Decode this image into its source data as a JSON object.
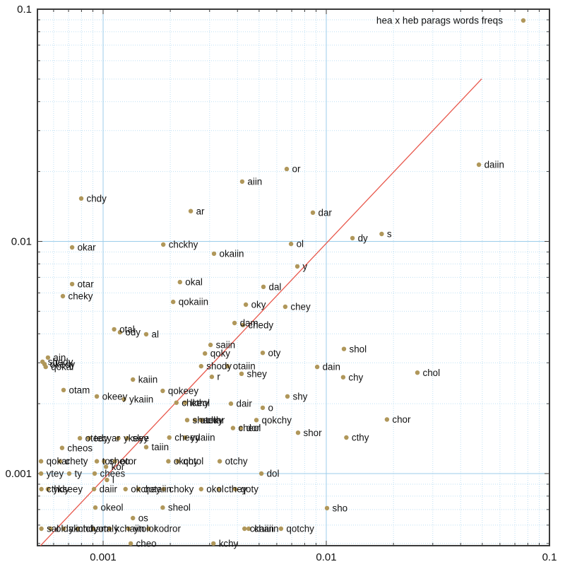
{
  "title": "hea x heb parags words freqs",
  "legend": {
    "label": "hea x heb parags words freqs",
    "position": "top-right"
  },
  "colors": {
    "background": "#ffffff",
    "point": "#b0975a",
    "ref_line": "#e8574b",
    "grid_major": "#9ccdeb",
    "grid_minor": "#bedff3",
    "axis_border": "#3a3a3a",
    "text": "#111111"
  },
  "axes": {
    "x": {
      "scale": "log",
      "min": 0.000508,
      "max": 0.1,
      "major_ticks": [
        0.001,
        0.01,
        0.1
      ],
      "tick_labels": [
        "0.001",
        "0.01",
        "0.1"
      ]
    },
    "y": {
      "scale": "log",
      "min": 0.000489,
      "max": 0.1,
      "major_ticks": [
        0.001,
        0.01,
        0.1
      ],
      "tick_labels": [
        "0.001",
        "0.01",
        "0.1"
      ]
    }
  },
  "chart_data": {
    "type": "scatter",
    "title": "hea x heb parags words freqs",
    "xlabel": "",
    "ylabel": "",
    "xscale": "log",
    "yscale": "log",
    "xlim": [
      0.000508,
      0.1
    ],
    "ylim": [
      0.000489,
      0.1
    ],
    "grid": true,
    "legend_position": "top-right",
    "ref_line": {
      "kind": "y=x",
      "x1": 0.000524,
      "y1": 0.000489,
      "x2": 0.0497,
      "y2": 0.0501,
      "color": "#e8574b"
    },
    "points": [
      {
        "word": "daiin",
        "x": 0.0483,
        "y": 0.0214
      },
      {
        "word": "or",
        "x": 0.00665,
        "y": 0.0205
      },
      {
        "word": "aiin",
        "x": 0.0042,
        "y": 0.0181
      },
      {
        "word": "chdy",
        "x": 0.000798,
        "y": 0.0153
      },
      {
        "word": "ar",
        "x": 0.00247,
        "y": 0.0135
      },
      {
        "word": "dar",
        "x": 0.00871,
        "y": 0.0133
      },
      {
        "word": "s",
        "x": 0.0177,
        "y": 0.01076
      },
      {
        "word": "dy",
        "x": 0.0131,
        "y": 0.01033
      },
      {
        "word": "okar",
        "x": 0.000726,
        "y": 0.00942
      },
      {
        "word": "chckhy",
        "x": 0.00186,
        "y": 0.00969
      },
      {
        "word": "okaiin",
        "x": 0.00314,
        "y": 0.00885
      },
      {
        "word": "ol",
        "x": 0.00695,
        "y": 0.00975
      },
      {
        "word": "y",
        "x": 0.00742,
        "y": 0.0078
      },
      {
        "word": "otar",
        "x": 0.000726,
        "y": 0.00655
      },
      {
        "word": "okal",
        "x": 0.00221,
        "y": 0.00668
      },
      {
        "word": "dal",
        "x": 0.00523,
        "y": 0.00637
      },
      {
        "word": "cheky",
        "x": 0.00066,
        "y": 0.00581
      },
      {
        "word": "qokaiin",
        "x": 0.00206,
        "y": 0.00549
      },
      {
        "word": "oky",
        "x": 0.00436,
        "y": 0.00534
      },
      {
        "word": "chey",
        "x": 0.00655,
        "y": 0.00523
      },
      {
        "word": "dam",
        "x": 0.00388,
        "y": 0.00445
      },
      {
        "word": "chedy",
        "x": 0.00423,
        "y": 0.00436
      },
      {
        "word": "otal",
        "x": 0.00112,
        "y": 0.00418
      },
      {
        "word": "ody",
        "x": 0.00119,
        "y": 0.00406
      },
      {
        "word": "al",
        "x": 0.00156,
        "y": 0.00398
      },
      {
        "word": "saiin",
        "x": 0.00303,
        "y": 0.00358
      },
      {
        "word": "qoky",
        "x": 0.00286,
        "y": 0.00329
      },
      {
        "word": "oty",
        "x": 0.00519,
        "y": 0.00331
      },
      {
        "word": "shol",
        "x": 0.012,
        "y": 0.00344
      },
      {
        "word": "ain",
        "x": 0.000566,
        "y": 0.00316
      },
      {
        "word": "shedy",
        "x": 0.000535,
        "y": 0.00303
      },
      {
        "word": "okedy",
        "x": 0.000546,
        "y": 0.00296
      },
      {
        "word": "qokal",
        "x": 0.000553,
        "y": 0.00288
      },
      {
        "word": "shody",
        "x": 0.00275,
        "y": 0.0029
      },
      {
        "word": "otaiin",
        "x": 0.00361,
        "y": 0.0029
      },
      {
        "word": "dain",
        "x": 0.0091,
        "y": 0.00288
      },
      {
        "word": "chol",
        "x": 0.0256,
        "y": 0.00272
      },
      {
        "word": "chy",
        "x": 0.0119,
        "y": 0.0026
      },
      {
        "word": "r",
        "x": 0.00307,
        "y": 0.00261
      },
      {
        "word": "shey",
        "x": 0.00417,
        "y": 0.00269
      },
      {
        "word": "kaiin",
        "x": 0.00136,
        "y": 0.00254
      },
      {
        "word": "otam",
        "x": 0.000665,
        "y": 0.00229
      },
      {
        "word": "qokeey",
        "x": 0.00185,
        "y": 0.00227
      },
      {
        "word": "okeey",
        "x": 0.000937,
        "y": 0.00215
      },
      {
        "word": "ykaiin",
        "x": 0.00124,
        "y": 0.00209
      },
      {
        "word": "shy",
        "x": 0.0067,
        "y": 0.00215
      },
      {
        "word": "chcthy",
        "x": 0.00213,
        "y": 0.00202
      },
      {
        "word": "lkeol",
        "x": 0.00233,
        "y": 0.00202
      },
      {
        "word": "dair",
        "x": 0.00374,
        "y": 0.002
      },
      {
        "word": "o",
        "x": 0.00519,
        "y": 0.00192
      },
      {
        "word": "sheedy",
        "x": 0.00238,
        "y": 0.0017
      },
      {
        "word": "oteky",
        "x": 0.00258,
        "y": 0.0017
      },
      {
        "word": "char",
        "x": 0.00275,
        "y": 0.0017
      },
      {
        "word": "qokchy",
        "x": 0.00486,
        "y": 0.0017
      },
      {
        "word": "cheol",
        "x": 0.00382,
        "y": 0.00157
      },
      {
        "word": "dor",
        "x": 0.00414,
        "y": 0.00157
      },
      {
        "word": "shor",
        "x": 0.00747,
        "y": 0.0015
      },
      {
        "word": "chor",
        "x": 0.0187,
        "y": 0.00171
      },
      {
        "word": "cthy",
        "x": 0.0123,
        "y": 0.00143
      },
      {
        "word": "otedy",
        "x": 0.000787,
        "y": 0.00142
      },
      {
        "word": "tecyar",
        "x": 0.000864,
        "y": 0.00142
      },
      {
        "word": "ykeey",
        "x": 0.00117,
        "y": 0.00142
      },
      {
        "word": "slye",
        "x": 0.00128,
        "y": 0.00142
      },
      {
        "word": "cheey",
        "x": 0.00198,
        "y": 0.00143
      },
      {
        "word": "ydaiin",
        "x": 0.00233,
        "y": 0.00143
      },
      {
        "word": "cheos",
        "x": 0.000655,
        "y": 0.00129
      },
      {
        "word": "taiin",
        "x": 0.00156,
        "y": 0.0013
      },
      {
        "word": "qokar",
        "x": 0.000527,
        "y": 0.00113
      },
      {
        "word": "chety",
        "x": 0.000641,
        "y": 0.00113
      },
      {
        "word": "tor",
        "x": 0.000937,
        "y": 0.00113
      },
      {
        "word": "sheo",
        "x": 0.00101,
        "y": 0.00113
      },
      {
        "word": "otor",
        "x": 0.00113,
        "y": 0.00113
      },
      {
        "word": "okchy",
        "x": 0.00196,
        "y": 0.00113
      },
      {
        "word": "qotol",
        "x": 0.00216,
        "y": 0.00113
      },
      {
        "word": "otchy",
        "x": 0.00333,
        "y": 0.00113
      },
      {
        "word": "kor",
        "x": 0.00103,
        "y": 0.00107
      },
      {
        "word": "ytey",
        "x": 0.000527,
        "y": 0.001
      },
      {
        "word": "ty",
        "x": 0.000705,
        "y": 0.001
      },
      {
        "word": "chees",
        "x": 0.000916,
        "y": 0.001
      },
      {
        "word": "l",
        "x": 0.00104,
        "y": 0.000939
      },
      {
        "word": "dol",
        "x": 0.00512,
        "y": 0.001
      },
      {
        "word": "cthdy",
        "x": 0.000529,
        "y": 0.000857
      },
      {
        "word": "ykseey",
        "x": 0.000566,
        "y": 0.000857
      },
      {
        "word": "daiir",
        "x": 0.00091,
        "y": 0.000857
      },
      {
        "word": "okchey",
        "x": 0.00126,
        "y": 0.000857
      },
      {
        "word": "qotaiin",
        "x": 0.00144,
        "y": 0.000857
      },
      {
        "word": "choky",
        "x": 0.00187,
        "y": 0.000857
      },
      {
        "word": "okol",
        "x": 0.00275,
        "y": 0.000857
      },
      {
        "word": "cthey",
        "x": 0.0033,
        "y": 0.000857
      },
      {
        "word": "qoty",
        "x": 0.00391,
        "y": 0.000857
      },
      {
        "word": "okeol",
        "x": 0.000923,
        "y": 0.000714
      },
      {
        "word": "sheol",
        "x": 0.00185,
        "y": 0.000714
      },
      {
        "word": "os",
        "x": 0.00136,
        "y": 0.000643
      },
      {
        "word": "sho",
        "x": 0.01007,
        "y": 0.00071
      },
      {
        "word": "sal",
        "x": 0.000529,
        "y": 0.000579
      },
      {
        "word": "oldaiin",
        "x": 0.000581,
        "y": 0.000579
      },
      {
        "word": "ykchdy",
        "x": 0.000665,
        "y": 0.000579
      },
      {
        "word": "tcham",
        "x": 0.000769,
        "y": 0.000579
      },
      {
        "word": "otaly",
        "x": 0.000903,
        "y": 0.000579
      },
      {
        "word": "kchaiin",
        "x": 0.00107,
        "y": 0.000579
      },
      {
        "word": "ytolor",
        "x": 0.0013,
        "y": 0.000579
      },
      {
        "word": "kodror",
        "x": 0.0016,
        "y": 0.000579
      },
      {
        "word": "ckaiin",
        "x": 0.0043,
        "y": 0.000579
      },
      {
        "word": "chaiin",
        "x": 0.00449,
        "y": 0.000579
      },
      {
        "word": "qotchy",
        "x": 0.00627,
        "y": 0.000579
      },
      {
        "word": "cheo",
        "x": 0.00133,
        "y": 0.0005
      },
      {
        "word": "kchy",
        "x": 0.00312,
        "y": 0.0005
      }
    ]
  }
}
